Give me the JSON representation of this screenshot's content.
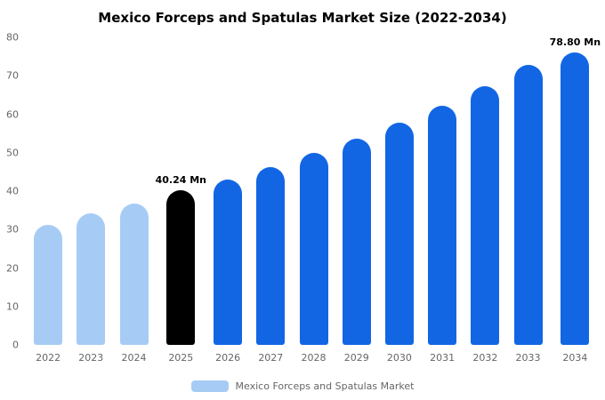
{
  "chart_data": {
    "type": "bar",
    "title": "Mexico Forceps and Spatulas Market Size (2022-2034)",
    "categories": [
      "2022",
      "2023",
      "2024",
      "2025",
      "2026",
      "2027",
      "2028",
      "2029",
      "2030",
      "2031",
      "2032",
      "2033",
      "2034"
    ],
    "values": [
      31.2,
      34.2,
      36.8,
      40.24,
      43.0,
      46.2,
      49.9,
      53.6,
      57.8,
      62.2,
      67.3,
      72.8,
      78.8
    ],
    "bar_colors": [
      "#a6ccf5",
      "#a6ccf5",
      "#a6ccf5",
      "#000000",
      "#1266e3",
      "#1266e3",
      "#1266e3",
      "#1266e3",
      "#1266e3",
      "#1266e3",
      "#1266e3",
      "#1266e3",
      "#1266e3"
    ],
    "annotations": [
      {
        "index": 3,
        "text": "40.24 Mn"
      },
      {
        "index": 12,
        "text": "78.80 Mn"
      }
    ],
    "ylim": [
      0,
      80
    ],
    "yticks": [
      "0",
      "10",
      "20",
      "30",
      "40",
      "50",
      "60",
      "70",
      "80"
    ],
    "legend": "Mexico Forceps and Spatulas Market",
    "legend_swatch_color": "#a6ccf5",
    "grid": "off",
    "legend_position": "bottom"
  }
}
